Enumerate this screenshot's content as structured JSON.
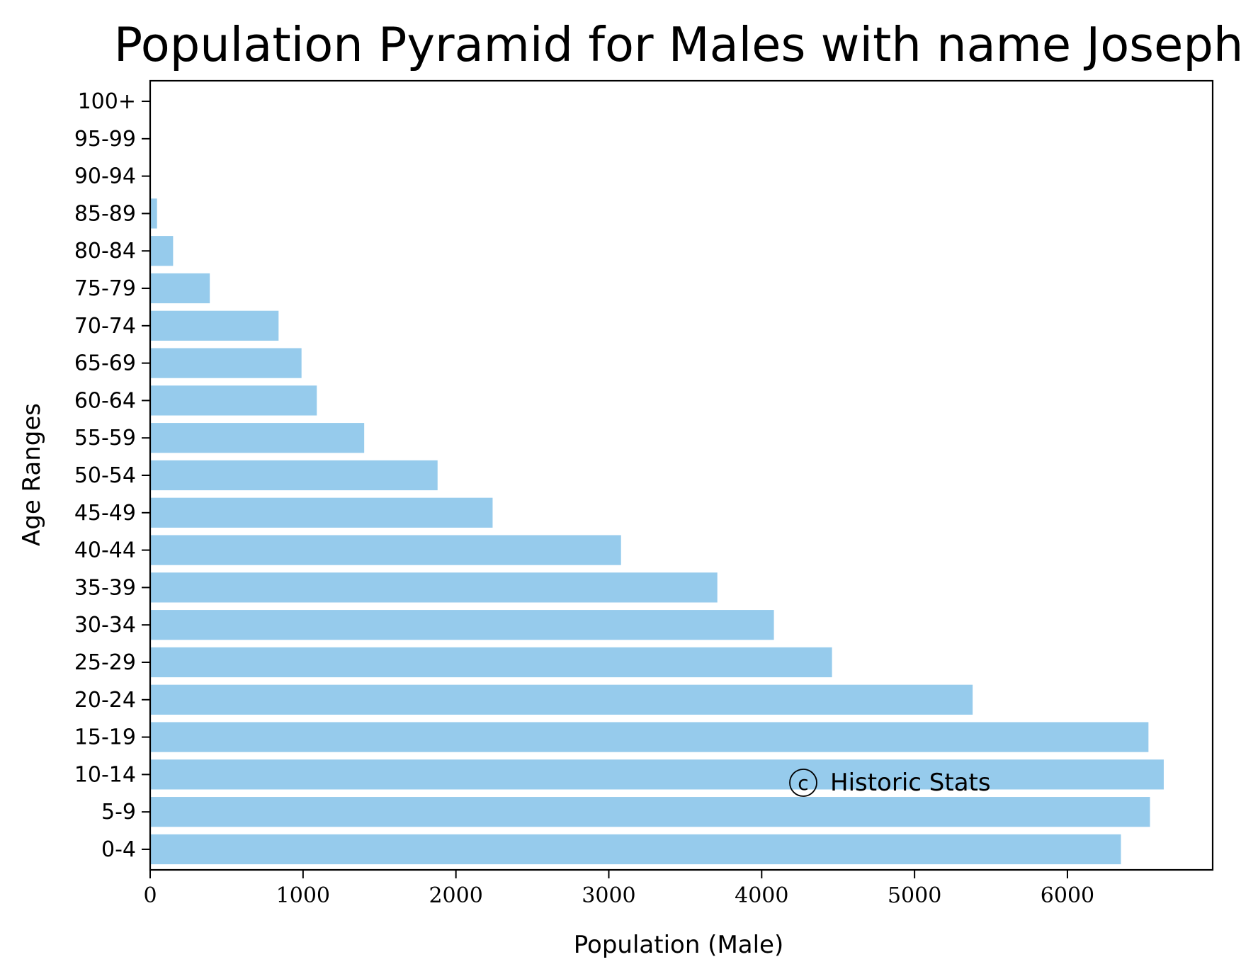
{
  "chart_data": {
    "type": "bar",
    "orientation": "horizontal",
    "title": "Population Pyramid for Males with name Joseph",
    "xlabel": "Population (Male)",
    "ylabel": "Age Ranges",
    "categories": [
      "0-4",
      "5-9",
      "10-14",
      "15-19",
      "20-24",
      "25-29",
      "30-34",
      "35-39",
      "40-44",
      "45-49",
      "50-54",
      "55-59",
      "60-64",
      "65-69",
      "70-74",
      "75-79",
      "80-84",
      "85-89",
      "90-94",
      "95-99",
      "100+"
    ],
    "values": [
      6350,
      6540,
      6630,
      6530,
      5380,
      4460,
      4080,
      3710,
      3080,
      2240,
      1880,
      1400,
      1090,
      990,
      840,
      390,
      150,
      45,
      0,
      0,
      0
    ],
    "xlim": [
      0,
      6950
    ],
    "xticks": [
      0,
      1000,
      2000,
      3000,
      4000,
      5000,
      6000
    ],
    "xtick_labels": [
      "0",
      "1000",
      "2000",
      "3000",
      "4000",
      "5000",
      "6000"
    ],
    "bar_color": "#96CBEC",
    "grid": false,
    "legend": "none",
    "annotation": "Historic Stats",
    "annotation_symbol": "c"
  }
}
